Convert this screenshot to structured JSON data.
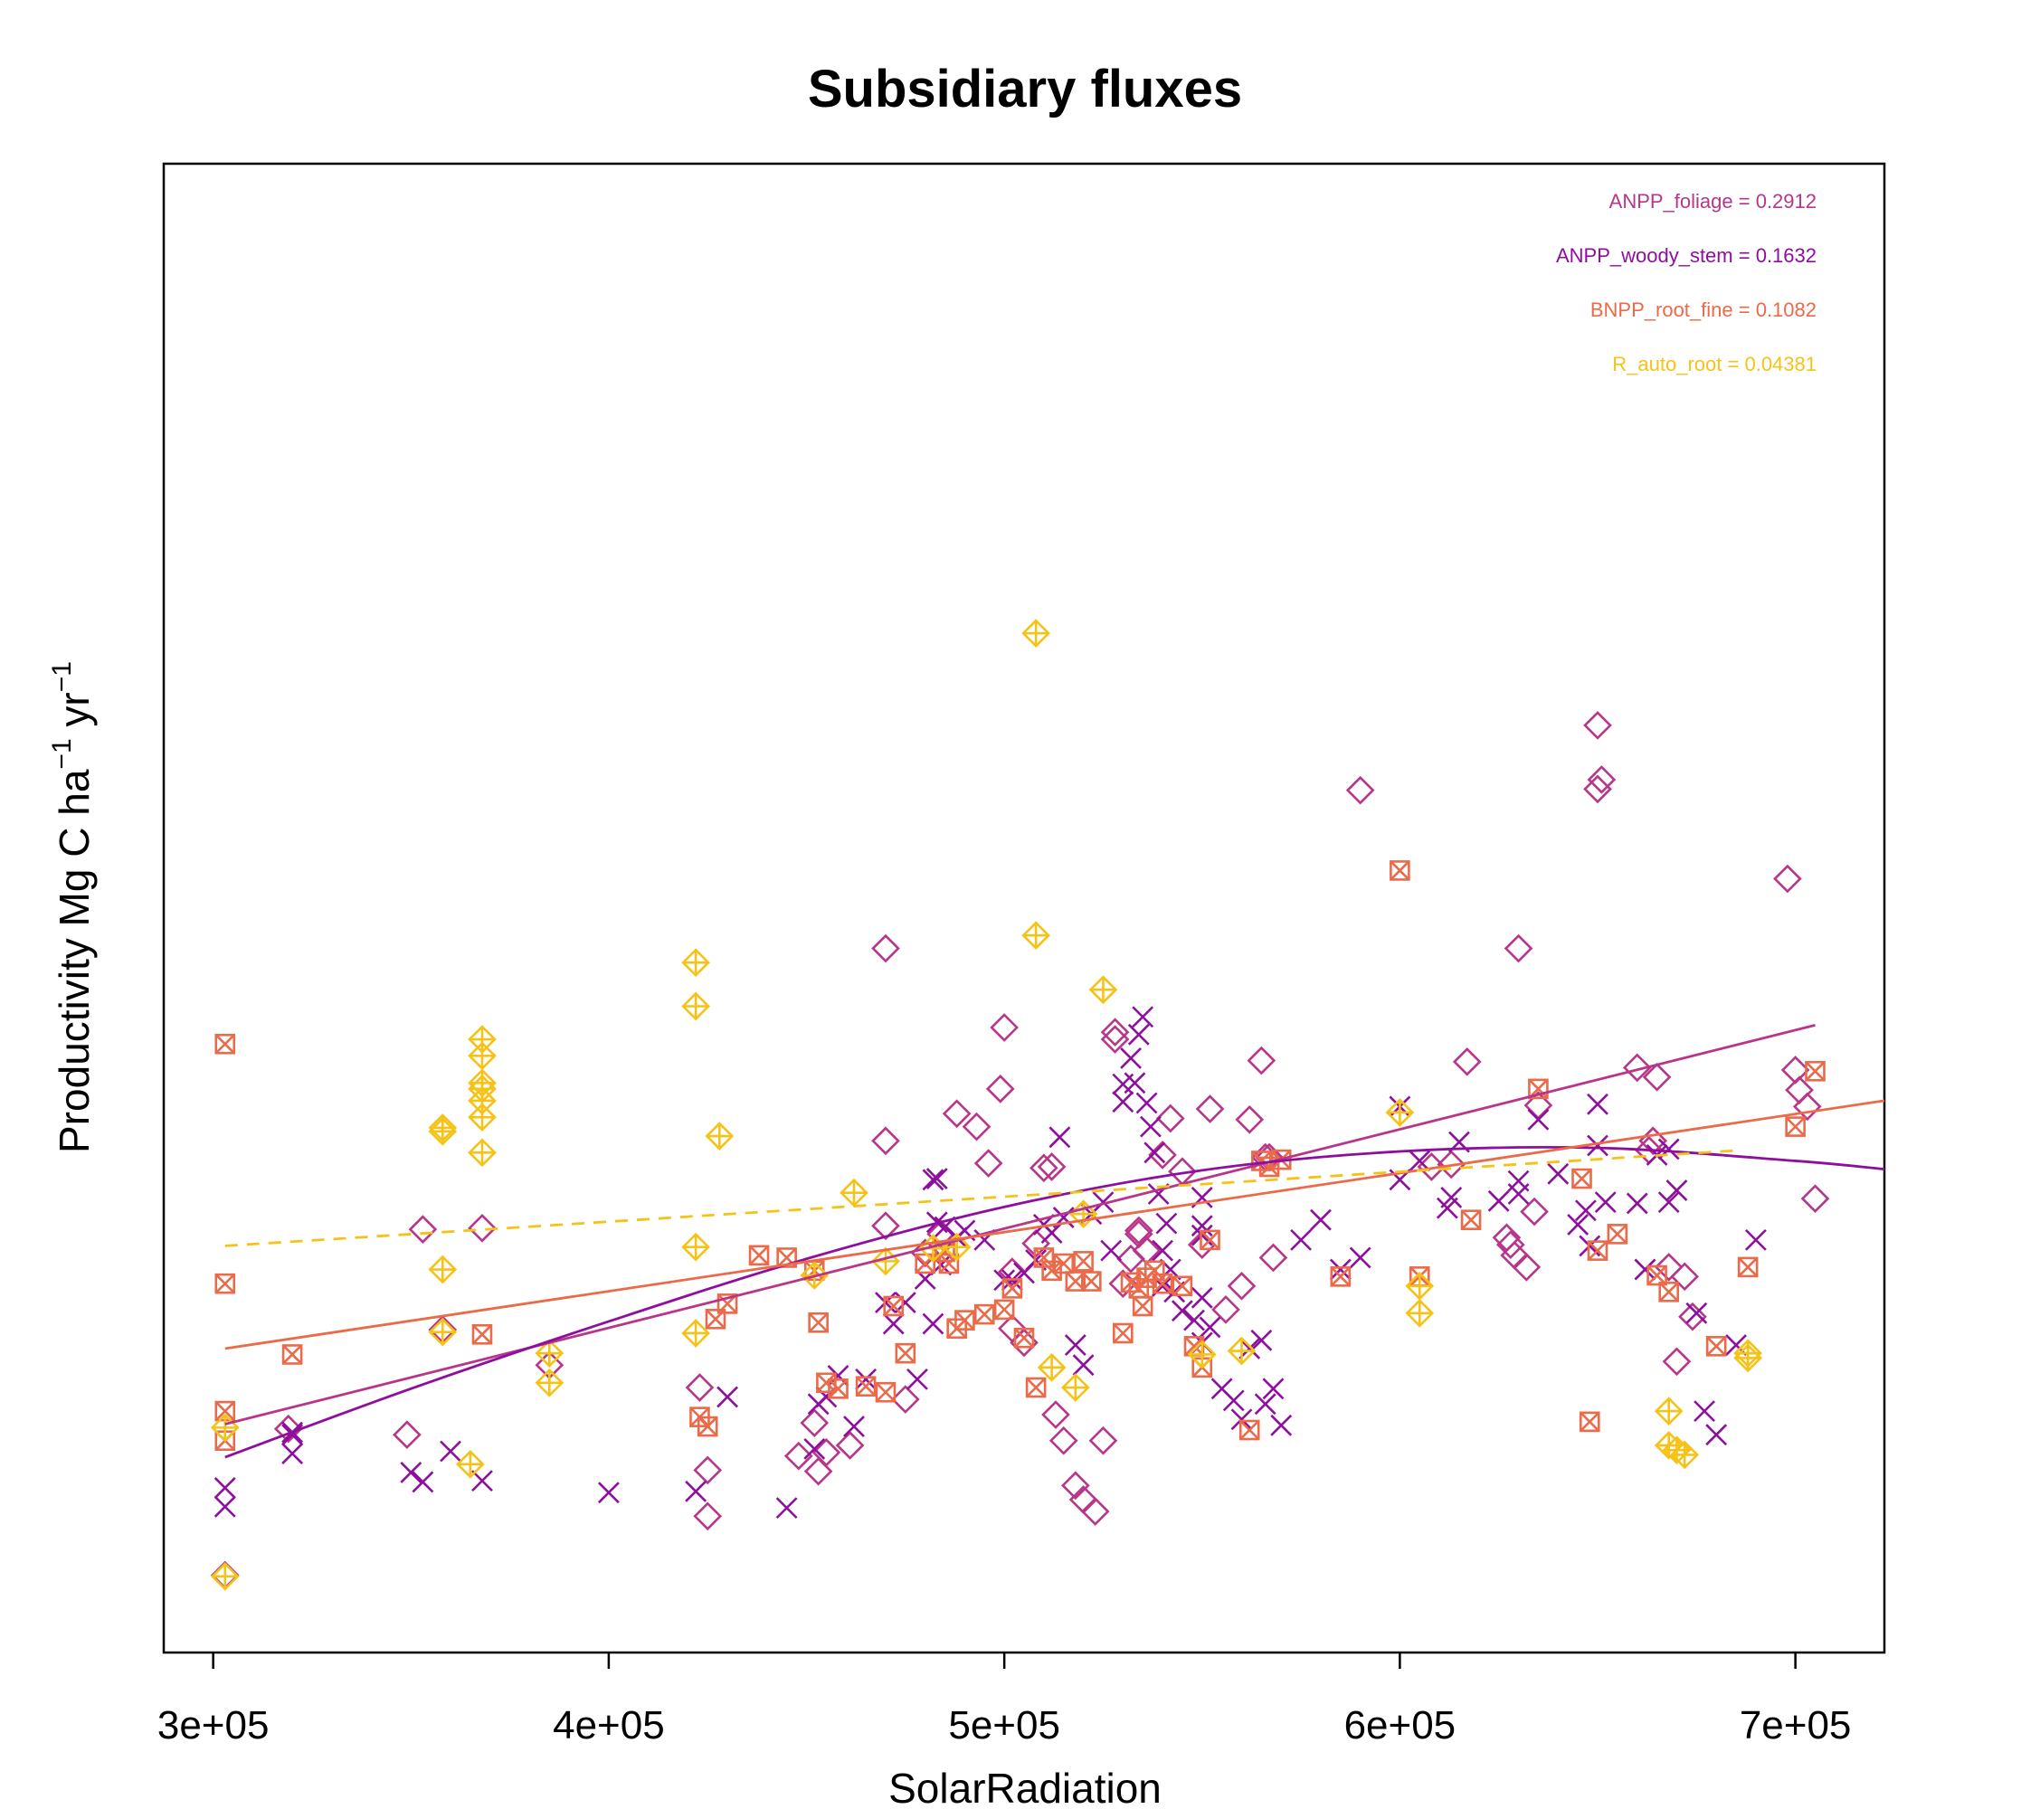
{
  "chart_data": {
    "type": "scatter",
    "title": "Subsidiary fluxes",
    "xlabel": "SolarRadiation",
    "ylabel": {
      "main": "Productivity Mg C ha",
      "sup1": "−1",
      "mid": " yr",
      "sup2": "−1"
    },
    "xlim": [
      287500,
      722500
    ],
    "ylim": [
      0,
      1
    ],
    "x_ticks": [
      300000,
      400000,
      500000,
      600000,
      700000
    ],
    "x_tick_labels": [
      "3e+05",
      "4e+05",
      "5e+05",
      "6e+05",
      "7e+05"
    ],
    "y_ticks_shown": false,
    "grid": false,
    "legend_position": "top-right",
    "legend": [
      {
        "label": "ANPP_foliage",
        "value": "0.2912",
        "color": "#B8358A"
      },
      {
        "label": "ANPP_woody_stem",
        "value": "0.1632",
        "color": "#8E0F9E"
      },
      {
        "label": "BNPP_root_fine",
        "value": "0.1082",
        "color": "#EA6A4A"
      },
      {
        "label": "R_auto_root",
        "value": "0.04381",
        "color": "#F5C317"
      }
    ],
    "series": [
      {
        "name": "ANPP_foliage",
        "marker": "diamond",
        "color": "#B8358A",
        "x": [
          303000,
          319000,
          349000,
          353000,
          358000,
          368000,
          385000,
          423000,
          425000,
          425000,
          448000,
          452000,
          453000,
          455000,
          461000,
          470000,
          470000,
          470000,
          475000,
          480000,
          484000,
          488000,
          493000,
          496000,
          499000,
          500000,
          502000,
          502000,
          505000,
          508000,
          510000,
          512000,
          513000,
          515000,
          518000,
          520000,
          523000,
          525000,
          528000,
          528000,
          530000,
          532000,
          534000,
          534000,
          536000,
          540000,
          542000,
          545000,
          550000,
          552000,
          556000,
          560000,
          562000,
          565000,
          566000,
          567000,
          568000,
          590000,
          608000,
          613000,
          617000,
          627000,
          628000,
          629000,
          630000,
          632000,
          634000,
          635000,
          650000,
          650000,
          651000,
          660000,
          663000,
          664000,
          665000,
          668000,
          670000,
          672000,
          674000,
          698000,
          700000,
          701000,
          703000,
          705000
        ],
        "y": [
          0.018,
          0.142,
          0.137,
          0.311,
          0.226,
          0.312,
          0.196,
          0.177,
          0.068,
          0.107,
          0.119,
          0.147,
          0.106,
          0.122,
          0.128,
          0.549,
          0.386,
          0.314,
          0.167,
          0.291,
          0.307,
          0.409,
          0.398,
          0.367,
          0.43,
          0.482,
          0.275,
          0.227,
          0.215,
          0.299,
          0.363,
          0.364,
          0.154,
          0.132,
          0.094,
          0.082,
          0.072,
          0.132,
          0.478,
          0.472,
          0.265,
          0.286,
          0.31,
          0.307,
          0.293,
          0.374,
          0.405,
          0.36,
          0.298,
          0.413,
          0.243,
          0.263,
          0.404,
          0.454,
          0.372,
          0.372,
          0.287,
          0.683,
          0.364,
          0.366,
          0.453,
          0.304,
          0.298,
          0.289,
          0.549,
          0.279,
          0.326,
          0.416,
          0.684,
          0.738,
          0.692,
          0.448,
          0.378,
          0.386,
          0.44,
          0.279,
          0.199,
          0.271,
          0.237,
          0.608,
          0.446,
          0.429,
          0.415,
          0.337
        ]
      },
      {
        "name": "ANPP_woody_stem",
        "marker": "cross",
        "color": "#8E0F9E",
        "x": [
          303000,
          303000,
          320000,
          320000,
          320000,
          350000,
          353000,
          360000,
          368000,
          400000,
          422000,
          430000,
          445000,
          452000,
          453000,
          455000,
          458000,
          462000,
          465000,
          470000,
          472000,
          475000,
          478000,
          480000,
          482000,
          482000,
          483000,
          483000,
          484000,
          485000,
          488000,
          490000,
          495000,
          500000,
          502000,
          505000,
          508000,
          510000,
          512000,
          514000,
          515000,
          518000,
          520000,
          522000,
          525000,
          527000,
          530000,
          530000,
          532000,
          533000,
          534000,
          535000,
          536000,
          537000,
          538000,
          539000,
          540000,
          540000,
          541000,
          542000,
          543000,
          545000,
          548000,
          550000,
          550000,
          550000,
          550000,
          550000,
          552000,
          555000,
          558000,
          560000,
          562000,
          565000,
          566000,
          568000,
          570000,
          575000,
          580000,
          585000,
          590000,
          600000,
          600000,
          605000,
          612000,
          613000,
          615000,
          625000,
          630000,
          630000,
          635000,
          640000,
          645000,
          647000,
          648000,
          650000,
          650000,
          652000,
          660000,
          662000,
          662000,
          665000,
          668000,
          668000,
          670000,
          675000,
          677000,
          680000,
          685000,
          690000
        ],
        "y": [
          0.076,
          0.092,
          0.121,
          0.137,
          0.139,
          0.105,
          0.097,
          0.123,
          0.098,
          0.088,
          0.089,
          0.169,
          0.075,
          0.125,
          0.163,
          0.169,
          0.187,
          0.144,
          0.184,
          0.249,
          0.231,
          0.249,
          0.184,
          0.269,
          0.231,
          0.353,
          0.354,
          0.317,
          0.281,
          0.313,
          0.304,
          0.31,
          0.302,
          0.268,
          0.268,
          0.274,
          0.285,
          0.315,
          0.308,
          0.389,
          0.321,
          0.213,
          0.196,
          0.324,
          0.334,
          0.293,
          0.419,
          0.434,
          0.456,
          0.435,
          0.476,
          0.491,
          0.418,
          0.398,
          0.376,
          0.341,
          0.263,
          0.293,
          0.316,
          0.277,
          0.258,
          0.242,
          0.234,
          0.215,
          0.253,
          0.306,
          0.314,
          0.338,
          0.228,
          0.176,
          0.166,
          0.15,
          0.21,
          0.217,
          0.163,
          0.176,
          0.145,
          0.302,
          0.319,
          0.277,
          0.287,
          0.415,
          0.353,
          0.369,
          0.329,
          0.338,
          0.385,
          0.335,
          0.341,
          0.352,
          0.404,
          0.358,
          0.315,
          0.327,
          0.297,
          0.382,
          0.417,
          0.334,
          0.333,
          0.277,
          0.277,
          0.374,
          0.334,
          0.379,
          0.344,
          0.24,
          0.157,
          0.137,
          0.213,
          0.302
        ],
        "note_coords": "points approximated"
      },
      {
        "name": "BNPP_root_fine",
        "marker": "square-x",
        "color": "#EA6A4A",
        "x": [
          303000,
          303000,
          303000,
          303000,
          320000,
          368000,
          423000,
          425000,
          427000,
          430000,
          438000,
          445000,
          452000,
          453000,
          455000,
          458000,
          465000,
          470000,
          472000,
          475000,
          480000,
          485000,
          486000,
          488000,
          490000,
          495000,
          500000,
          502000,
          505000,
          508000,
          510000,
          512000,
          515000,
          518000,
          520000,
          522000,
          530000,
          532000,
          534000,
          535000,
          536000,
          538000,
          540000,
          545000,
          548000,
          550000,
          552000,
          562000,
          565000,
          567000,
          570000,
          585000,
          600000,
          605000,
          618000,
          635000,
          646000,
          648000,
          650000,
          655000,
          665000,
          668000,
          680000,
          688000,
          700000,
          705000
        ],
        "y": [
          0.468,
          0.265,
          0.157,
          0.132,
          0.205,
          0.222,
          0.152,
          0.144,
          0.235,
          0.248,
          0.289,
          0.287,
          0.276,
          0.232,
          0.181,
          0.176,
          0.178,
          0.173,
          0.246,
          0.206,
          0.282,
          0.292,
          0.282,
          0.227,
          0.234,
          0.239,
          0.243,
          0.261,
          0.219,
          0.177,
          0.287,
          0.276,
          0.282,
          0.267,
          0.284,
          0.267,
          0.223,
          0.266,
          0.261,
          0.246,
          0.27,
          0.276,
          0.265,
          0.263,
          0.212,
          0.194,
          0.302,
          0.141,
          0.369,
          0.364,
          0.37,
          0.271,
          0.615,
          0.271,
          0.319,
          0.43,
          0.354,
          0.148,
          0.293,
          0.307,
          0.272,
          0.258,
          0.212,
          0.279,
          0.398,
          0.445
        ],
        "note_coords": "points approximated"
      },
      {
        "name": "R_auto_root",
        "marker": "diamond-plus",
        "color": "#F5C317",
        "x": [
          303000,
          303000,
          358000,
          358000,
          358000,
          358000,
          365000,
          368000,
          368000,
          368000,
          368000,
          368000,
          368000,
          368000,
          385000,
          385000,
          422000,
          422000,
          422000,
          422000,
          428000,
          452000,
          462000,
          470000,
          482000,
          488000,
          508000,
          508000,
          512000,
          518000,
          520000,
          525000,
          550000,
          560000,
          600000,
          605000,
          605000,
          668000,
          668000,
          670000,
          672000,
          688000,
          688000
        ],
        "y": [
          0.017,
          0.143,
          0.224,
          0.277,
          0.394,
          0.397,
          0.112,
          0.472,
          0.458,
          0.435,
          0.43,
          0.42,
          0.406,
          0.376,
          0.206,
          0.181,
          0.537,
          0.5,
          0.296,
          0.223,
          0.39,
          0.272,
          0.342,
          0.284,
          0.295,
          0.296,
          0.816,
          0.56,
          0.194,
          0.177,
          0.324,
          0.514,
          0.205,
          0.208,
          0.41,
          0.263,
          0.24,
          0.157,
          0.128,
          0.124,
          0.12,
          0.206,
          0.202
        ]
      }
    ],
    "fits": [
      {
        "series": "ANPP_foliage",
        "style": "solid",
        "color": "#B8358A",
        "x": [
          303000,
          705000
        ],
        "y": [
          0.146,
          0.484
        ]
      },
      {
        "series": "ANPP_woody_stem",
        "style": "solid",
        "color": "#8E0F9E",
        "x": [
          303000,
          350000,
          400000,
          450000,
          500000,
          550000,
          600000,
          650000,
          700000,
          722500
        ],
        "y": [
          0.118,
          0.176,
          0.233,
          0.286,
          0.33,
          0.361,
          0.377,
          0.38,
          0.369,
          0.362
        ]
      },
      {
        "series": "BNPP_root_fine",
        "style": "solid",
        "color": "#EA6A4A",
        "x": [
          303000,
          722500
        ],
        "y": [
          0.21,
          0.42
        ]
      },
      {
        "series": "R_auto_root",
        "style": "dashed",
        "color": "#F5C317",
        "x": [
          303000,
          686000
        ],
        "y": [
          0.297,
          0.378
        ]
      }
    ]
  }
}
